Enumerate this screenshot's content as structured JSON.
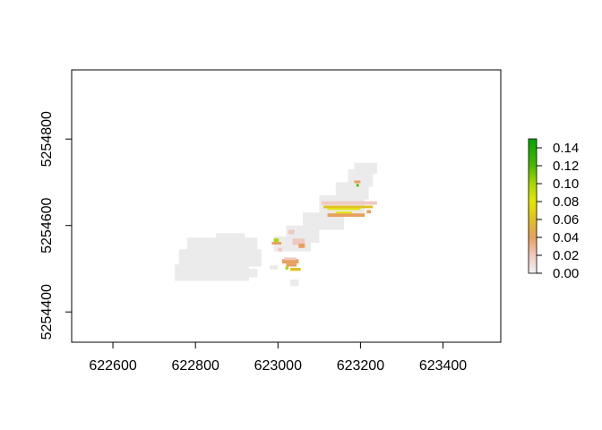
{
  "chart_data": {
    "type": "heatmap",
    "title": "",
    "xlabel": "",
    "ylabel": "",
    "xlim": [
      622500,
      623540
    ],
    "ylim": [
      5254330,
      5254960
    ],
    "x_ticks": [
      622600,
      622800,
      623000,
      623200,
      623400
    ],
    "y_ticks": [
      5254400,
      5254600,
      5254800
    ],
    "x_tick_labels": [
      "622600",
      "622800",
      "623000",
      "623200",
      "623400"
    ],
    "y_tick_labels": [
      "5254400",
      "5254600",
      "5254800"
    ],
    "grid": false,
    "legend": {
      "position": "right",
      "range": [
        0,
        0.15
      ],
      "ticks": [
        0.0,
        0.02,
        0.04,
        0.06,
        0.08,
        0.1,
        0.12,
        0.14
      ],
      "tick_labels": [
        "0.00",
        "0.02",
        "0.04",
        "0.06",
        "0.08",
        "0.10",
        "0.12",
        "0.14"
      ],
      "color_stops": [
        {
          "value": 0.0,
          "color": "#f2f2f2"
        },
        {
          "value": 0.02,
          "color": "#f0c9c0"
        },
        {
          "value": 0.04,
          "color": "#e8a05c"
        },
        {
          "value": 0.06,
          "color": "#e0c024"
        },
        {
          "value": 0.08,
          "color": "#e6e600"
        },
        {
          "value": 0.1,
          "color": "#a8d800"
        },
        {
          "value": 0.12,
          "color": "#4cb800"
        },
        {
          "value": 0.15,
          "color": "#00a600"
        }
      ]
    },
    "background_color": "#ebebeb",
    "cells": [
      {
        "x": [
          622750,
          622930
        ],
        "y": [
          5254472,
          5254510
        ],
        "value": 0
      },
      {
        "x": [
          622760,
          622960
        ],
        "y": [
          5254505,
          5254545
        ],
        "value": 0
      },
      {
        "x": [
          622780,
          622950
        ],
        "y": [
          5254540,
          5254572
        ],
        "value": 0
      },
      {
        "x": [
          622850,
          622920
        ],
        "y": [
          5254568,
          5254582
        ],
        "value": 0
      },
      {
        "x": [
          622900,
          622950
        ],
        "y": [
          5254480,
          5254500
        ],
        "value": 0
      },
      {
        "x": [
          622990,
          623080
        ],
        "y": [
          5254540,
          5254575
        ],
        "value": 0
      },
      {
        "x": [
          623020,
          623100
        ],
        "y": [
          5254560,
          5254600
        ],
        "value": 0
      },
      {
        "x": [
          623060,
          623160
        ],
        "y": [
          5254590,
          5254630
        ],
        "value": 0
      },
      {
        "x": [
          623100,
          623210
        ],
        "y": [
          5254620,
          5254670
        ],
        "value": 0
      },
      {
        "x": [
          623140,
          623220
        ],
        "y": [
          5254660,
          5254700
        ],
        "value": 0
      },
      {
        "x": [
          623170,
          623230
        ],
        "y": [
          5254690,
          5254730
        ],
        "value": 0
      },
      {
        "x": [
          623185,
          623240
        ],
        "y": [
          5254720,
          5254745
        ],
        "value": 0
      },
      {
        "x": [
          623030,
          623050
        ],
        "y": [
          5254460,
          5254475
        ],
        "value": 0
      },
      {
        "x": [
          622980,
          623000
        ],
        "y": [
          5254498,
          5254508
        ],
        "value": 0
      },
      {
        "x": [
          623105,
          623240
        ],
        "y": [
          5254648,
          5254656
        ],
        "value": 0.02
      },
      {
        "x": [
          623110,
          623230
        ],
        "y": [
          5254640,
          5254646
        ],
        "value": 0.05
      },
      {
        "x": [
          623120,
          623200
        ],
        "y": [
          5254636,
          5254640
        ],
        "value": 0.08
      },
      {
        "x": [
          623120,
          623210
        ],
        "y": [
          5254620,
          5254628
        ],
        "value": 0.03
      },
      {
        "x": [
          623140,
          623180
        ],
        "y": [
          5254628,
          5254632
        ],
        "value": 0.07
      },
      {
        "x": [
          623185,
          623200
        ],
        "y": [
          5254698,
          5254704
        ],
        "value": 0.04
      },
      {
        "x": [
          623190,
          623196
        ],
        "y": [
          5254690,
          5254696
        ],
        "value": 0.11
      },
      {
        "x": [
          623215,
          623225
        ],
        "y": [
          5254628,
          5254636
        ],
        "value": 0.03
      },
      {
        "x": [
          623035,
          623065
        ],
        "y": [
          5254555,
          5254570
        ],
        "value": 0.02
      },
      {
        "x": [
          623050,
          623065
        ],
        "y": [
          5254548,
          5254558
        ],
        "value": 0.04
      },
      {
        "x": [
          623010,
          623050
        ],
        "y": [
          5254512,
          5254522
        ],
        "value": 0.04
      },
      {
        "x": [
          623015,
          623045
        ],
        "y": [
          5254520,
          5254526
        ],
        "value": 0.02
      },
      {
        "x": [
          623020,
          623045
        ],
        "y": [
          5254505,
          5254512
        ],
        "value": 0.03
      },
      {
        "x": [
          623018,
          623025
        ],
        "y": [
          5254498,
          5254505
        ],
        "value": 0.09
      },
      {
        "x": [
          623030,
          623055
        ],
        "y": [
          5254495,
          5254502
        ],
        "value": 0.05
      },
      {
        "x": [
          622990,
          623002
        ],
        "y": [
          5254562,
          5254570
        ],
        "value": 0.1
      },
      {
        "x": [
          622985,
          623008
        ],
        "y": [
          5254556,
          5254562
        ],
        "value": 0.03
      },
      {
        "x": [
          623000,
          623010
        ],
        "y": [
          5254540,
          5254548
        ],
        "value": 0.02
      },
      {
        "x": [
          623025,
          623040
        ],
        "y": [
          5254580,
          5254590
        ],
        "value": 0.02
      }
    ]
  }
}
